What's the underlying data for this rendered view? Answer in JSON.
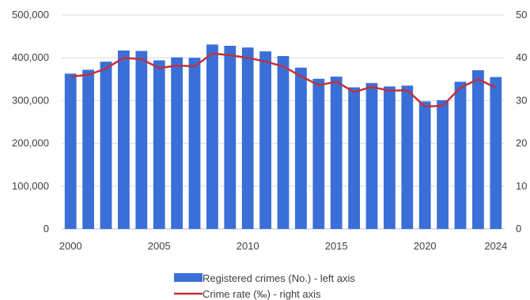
{
  "chart_data": {
    "type": "bar",
    "x": [
      2000,
      2001,
      2002,
      2003,
      2004,
      2005,
      2006,
      2007,
      2008,
      2009,
      2010,
      2011,
      2012,
      2013,
      2014,
      2015,
      2016,
      2017,
      2018,
      2019,
      2020,
      2021,
      2022,
      2023,
      2024
    ],
    "x_tick_labels": [
      "2000",
      "2005",
      "2010",
      "2015",
      "2020",
      "2024"
    ],
    "x_tick_values": [
      2000,
      2005,
      2010,
      2015,
      2020,
      2024
    ],
    "series": [
      {
        "name": "Registered crimes (No.) - left axis",
        "type": "bar",
        "axis": "left",
        "color": "#3a6fd8",
        "values": [
          363000,
          372000,
          391000,
          417000,
          416000,
          394000,
          401000,
          400000,
          431000,
          428000,
          424000,
          415000,
          404000,
          377000,
          351000,
          356000,
          331000,
          341000,
          333000,
          335000,
          298000,
          301000,
          344000,
          371000,
          355000
        ]
      },
      {
        "name": "Crime rate (‰) - right axis",
        "type": "line",
        "axis": "right",
        "color": "#c0313a",
        "values": [
          35.6,
          36.0,
          37.5,
          40.0,
          39.7,
          37.6,
          38.2,
          38.0,
          41.0,
          40.6,
          40.0,
          39.1,
          38.0,
          35.7,
          33.6,
          34.4,
          32.0,
          33.2,
          32.3,
          32.4,
          28.6,
          28.8,
          33.0,
          35.0,
          33.0
        ]
      }
    ],
    "y_left": {
      "ticks": [
        "0",
        "100,000",
        "200,000",
        "300,000",
        "400,000",
        "500,000"
      ],
      "range": [
        0,
        500000
      ]
    },
    "y_right": {
      "ticks": [
        "0",
        "10",
        "20",
        "30",
        "40",
        "50"
      ],
      "range": [
        0,
        50
      ]
    },
    "grid": true,
    "legend_position": "bottom",
    "title": "",
    "xlabel": "",
    "ylabel": ""
  }
}
